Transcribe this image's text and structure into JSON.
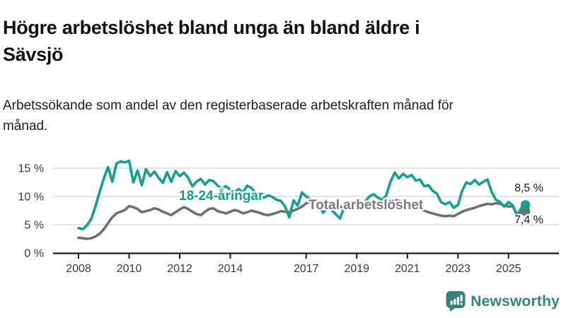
{
  "chart_data": {
    "type": "line",
    "title": "Högre arbetslöshet bland unga än bland äldre i Sävsjö",
    "subtitle": "Arbetssökande som andel av den registerbaserade arbetskraften månad för månad.",
    "unit": "%",
    "x_start": 2008,
    "x_step_years": 0.16667,
    "x_end": 2025.67,
    "x_ticks": [
      2008,
      2010,
      2012,
      2014,
      2017,
      2019,
      2021,
      2023,
      2025
    ],
    "y_ticks": [
      0,
      5,
      10,
      15
    ],
    "y_tick_suffix": " %",
    "ylim": [
      0,
      17
    ],
    "grid": "horizontal",
    "legend_position": "inline-labels",
    "series": [
      {
        "name": "18-24-åringar",
        "color": "#12a08f",
        "end_label": "8,5 %",
        "end_value": 8.5,
        "values": [
          4.4,
          4.2,
          4.9,
          6.0,
          8.2,
          10.8,
          13.2,
          15.2,
          12.6,
          15.8,
          16.2,
          16.0,
          16.3,
          12.5,
          14.6,
          12.0,
          14.8,
          13.6,
          14.4,
          13.3,
          12.4,
          14.3,
          12.6,
          14.5,
          13.6,
          14.2,
          13.3,
          11.8,
          12.6,
          13.1,
          12.1,
          12.9,
          12.7,
          11.9,
          11.4,
          11.8,
          11.2,
          10.8,
          11.3,
          10.7,
          11.9,
          11.5,
          10.6,
          10.3,
          9.8,
          10.2,
          9.9,
          9.4,
          9.2,
          8.2,
          6.3,
          9.3,
          8.4,
          10.7,
          10.0,
          9.5,
          9.0,
          8.3,
          7.1,
          8.0,
          7.6,
          6.9,
          6.1,
          8.0,
          8.6,
          8.2,
          8.8,
          8.4,
          9.1,
          10.0,
          10.4,
          9.8,
          9.4,
          10.2,
          12.6,
          14.2,
          13.2,
          14.0,
          13.4,
          13.8,
          12.8,
          13.0,
          11.8,
          12.0,
          11.0,
          10.5,
          9.0,
          8.6,
          9.0,
          8.0,
          8.5,
          11.0,
          12.5,
          12.2,
          12.9,
          12.1,
          12.6,
          13.0,
          10.8,
          9.4,
          9.0,
          8.2,
          9.0,
          8.4,
          6.6,
          7.9,
          8.5
        ]
      },
      {
        "name": "Total arbetslöshet",
        "color": "#6f6f6f",
        "end_label": "7,4 %",
        "end_value": 7.4,
        "values": [
          2.7,
          2.6,
          2.5,
          2.6,
          2.9,
          3.4,
          4.2,
          5.3,
          6.3,
          7.0,
          7.3,
          7.6,
          8.3,
          8.1,
          7.8,
          7.2,
          7.4,
          7.6,
          7.9,
          7.7,
          7.3,
          7.0,
          6.7,
          7.2,
          7.7,
          8.1,
          7.8,
          7.3,
          6.9,
          6.7,
          7.3,
          7.8,
          7.9,
          7.4,
          7.2,
          7.0,
          7.3,
          7.6,
          7.4,
          7.0,
          7.2,
          7.5,
          7.3,
          7.1,
          6.8,
          6.7,
          6.9,
          7.1,
          7.4,
          7.3,
          7.2,
          7.5,
          7.8,
          8.2,
          8.8,
          9.1,
          8.9,
          8.6,
          8.4,
          8.6,
          8.7,
          8.5,
          8.2,
          8.0,
          8.2,
          8.4,
          8.5,
          8.3,
          8.1,
          8.3,
          8.4,
          8.5,
          8.6,
          8.9,
          9.3,
          9.4,
          9.2,
          9.0,
          8.8,
          8.5,
          8.2,
          7.9,
          7.5,
          7.2,
          7.0,
          6.8,
          6.6,
          6.5,
          6.6,
          6.5,
          6.9,
          7.3,
          7.6,
          7.8,
          8.0,
          8.3,
          8.5,
          8.7,
          8.6,
          8.8,
          8.7,
          8.4,
          8.2,
          8.3,
          6.9,
          7.1,
          7.4
        ]
      }
    ],
    "axis_color": "#1a1a1a",
    "grid_color": "#d9d9d9",
    "tick_label_color": "#3a3a3a"
  },
  "footer": {
    "brand": "Newsworthy",
    "brand_color": "#37827d"
  }
}
